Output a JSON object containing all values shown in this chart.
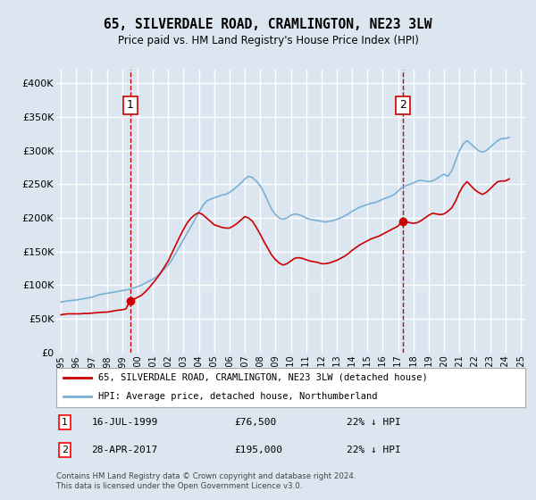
{
  "title": "65, SILVERDALE ROAD, CRAMLINGTON, NE23 3LW",
  "subtitle": "Price paid vs. HM Land Registry's House Price Index (HPI)",
  "bg_color": "#dce6f0",
  "hpi_color": "#7ab0d4",
  "price_color": "#cc0000",
  "vline_color": "#cc0000",
  "ylim": [
    0,
    420000
  ],
  "yticks": [
    0,
    50000,
    100000,
    150000,
    200000,
    250000,
    300000,
    350000,
    400000
  ],
  "ytick_labels": [
    "£0",
    "£50K",
    "£100K",
    "£150K",
    "£200K",
    "£250K",
    "£300K",
    "£350K",
    "£400K"
  ],
  "legend_label_price": "65, SILVERDALE ROAD, CRAMLINGTON, NE23 3LW (detached house)",
  "legend_label_hpi": "HPI: Average price, detached house, Northumberland",
  "note1_date": "16-JUL-1999",
  "note1_price": "£76,500",
  "note1_hpi": "22% ↓ HPI",
  "note2_date": "28-APR-2017",
  "note2_price": "£195,000",
  "note2_hpi": "22% ↓ HPI",
  "footer": "Contains HM Land Registry data © Crown copyright and database right 2024.\nThis data is licensed under the Open Government Licence v3.0.",
  "sale1_year": 1999.54,
  "sale1_price": 76500,
  "sale2_year": 2017.32,
  "sale2_price": 195000,
  "hpi_years": [
    1995.0,
    1995.25,
    1995.5,
    1995.75,
    1996.0,
    1996.25,
    1996.5,
    1996.75,
    1997.0,
    1997.25,
    1997.5,
    1997.75,
    1998.0,
    1998.25,
    1998.5,
    1998.75,
    1999.0,
    1999.25,
    1999.5,
    1999.75,
    2000.0,
    2000.25,
    2000.5,
    2000.75,
    2001.0,
    2001.25,
    2001.5,
    2001.75,
    2002.0,
    2002.25,
    2002.5,
    2002.75,
    2003.0,
    2003.25,
    2003.5,
    2003.75,
    2004.0,
    2004.25,
    2004.5,
    2004.75,
    2005.0,
    2005.25,
    2005.5,
    2005.75,
    2006.0,
    2006.25,
    2006.5,
    2006.75,
    2007.0,
    2007.25,
    2007.5,
    2007.75,
    2008.0,
    2008.25,
    2008.5,
    2008.75,
    2009.0,
    2009.25,
    2009.5,
    2009.75,
    2010.0,
    2010.25,
    2010.5,
    2010.75,
    2011.0,
    2011.25,
    2011.5,
    2011.75,
    2012.0,
    2012.25,
    2012.5,
    2012.75,
    2013.0,
    2013.25,
    2013.5,
    2013.75,
    2014.0,
    2014.25,
    2014.5,
    2014.75,
    2015.0,
    2015.25,
    2015.5,
    2015.75,
    2016.0,
    2016.25,
    2016.5,
    2016.75,
    2017.0,
    2017.25,
    2017.5,
    2017.75,
    2018.0,
    2018.25,
    2018.5,
    2018.75,
    2019.0,
    2019.25,
    2019.5,
    2019.75,
    2020.0,
    2020.25,
    2020.5,
    2020.75,
    2021.0,
    2021.25,
    2021.5,
    2021.75,
    2022.0,
    2022.25,
    2022.5,
    2022.75,
    2023.0,
    2023.25,
    2023.5,
    2023.75,
    2024.0,
    2024.25
  ],
  "hpi_values": [
    75000,
    76000,
    77000,
    77500,
    78000,
    79000,
    80000,
    81000,
    82000,
    84000,
    86000,
    87000,
    88000,
    89000,
    90000,
    91000,
    92000,
    93000,
    94000,
    96000,
    98000,
    100000,
    103000,
    106000,
    109000,
    113000,
    118000,
    124000,
    130000,
    138000,
    148000,
    158000,
    168000,
    178000,
    188000,
    198000,
    208000,
    218000,
    225000,
    228000,
    230000,
    232000,
    234000,
    235000,
    238000,
    242000,
    247000,
    252000,
    258000,
    262000,
    260000,
    255000,
    248000,
    238000,
    225000,
    213000,
    205000,
    200000,
    198000,
    200000,
    204000,
    206000,
    205000,
    203000,
    200000,
    198000,
    197000,
    196000,
    195000,
    194000,
    195000,
    196000,
    198000,
    200000,
    203000,
    206000,
    210000,
    213000,
    216000,
    218000,
    220000,
    222000,
    223000,
    225000,
    228000,
    230000,
    232000,
    235000,
    240000,
    245000,
    248000,
    250000,
    252000,
    255000,
    256000,
    255000,
    254000,
    255000,
    258000,
    262000,
    265000,
    262000,
    270000,
    285000,
    300000,
    310000,
    315000,
    310000,
    305000,
    300000,
    298000,
    300000,
    305000,
    310000,
    315000,
    318000,
    318000,
    320000
  ],
  "price_years": [
    1995.0,
    1995.25,
    1995.5,
    1995.75,
    1996.0,
    1996.25,
    1996.5,
    1996.75,
    1997.0,
    1997.25,
    1997.5,
    1997.75,
    1998.0,
    1998.25,
    1998.5,
    1998.75,
    1999.0,
    1999.25,
    1999.5,
    1999.75,
    2000.0,
    2000.25,
    2000.5,
    2000.75,
    2001.0,
    2001.25,
    2001.5,
    2001.75,
    2002.0,
    2002.25,
    2002.5,
    2002.75,
    2003.0,
    2003.25,
    2003.5,
    2003.75,
    2004.0,
    2004.25,
    2004.5,
    2004.75,
    2005.0,
    2005.25,
    2005.5,
    2005.75,
    2006.0,
    2006.25,
    2006.5,
    2006.75,
    2007.0,
    2007.25,
    2007.5,
    2007.75,
    2008.0,
    2008.25,
    2008.5,
    2008.75,
    2009.0,
    2009.25,
    2009.5,
    2009.75,
    2010.0,
    2010.25,
    2010.5,
    2010.75,
    2011.0,
    2011.25,
    2011.5,
    2011.75,
    2012.0,
    2012.25,
    2012.5,
    2012.75,
    2013.0,
    2013.25,
    2013.5,
    2013.75,
    2014.0,
    2014.25,
    2014.5,
    2014.75,
    2015.0,
    2015.25,
    2015.5,
    2015.75,
    2016.0,
    2016.25,
    2016.5,
    2016.75,
    2017.0,
    2017.25,
    2017.5,
    2017.75,
    2018.0,
    2018.25,
    2018.5,
    2018.75,
    2019.0,
    2019.25,
    2019.5,
    2019.75,
    2020.0,
    2020.25,
    2020.5,
    2020.75,
    2021.0,
    2021.25,
    2021.5,
    2021.75,
    2022.0,
    2022.25,
    2022.5,
    2022.75,
    2023.0,
    2023.25,
    2023.5,
    2023.75,
    2024.0,
    2024.25
  ],
  "price_values": [
    56000,
    57000,
    57500,
    57500,
    57500,
    57500,
    58000,
    58000,
    58500,
    59000,
    59500,
    60000,
    60000,
    61000,
    62000,
    63000,
    63500,
    65000,
    76500,
    79000,
    82000,
    85000,
    90000,
    96000,
    103000,
    110000,
    118000,
    127000,
    136000,
    148000,
    160000,
    172000,
    183000,
    193000,
    200000,
    205000,
    208000,
    205000,
    200000,
    195000,
    190000,
    188000,
    186000,
    185000,
    185000,
    188000,
    192000,
    197000,
    202000,
    200000,
    195000,
    186000,
    176000,
    165000,
    155000,
    145000,
    138000,
    133000,
    130000,
    132000,
    136000,
    140000,
    141000,
    140000,
    138000,
    136000,
    135000,
    134000,
    132000,
    132000,
    133000,
    135000,
    137000,
    140000,
    143000,
    147000,
    152000,
    156000,
    160000,
    163000,
    166000,
    169000,
    171000,
    173000,
    176000,
    179000,
    182000,
    185000,
    188000,
    195000,
    195000,
    193000,
    192000,
    193000,
    196000,
    200000,
    204000,
    207000,
    206000,
    205000,
    206000,
    210000,
    215000,
    225000,
    238000,
    248000,
    254000,
    248000,
    242000,
    238000,
    235000,
    238000,
    243000,
    249000,
    254000,
    255000,
    255000,
    258000
  ],
  "xtick_years": [
    1995,
    1996,
    1997,
    1998,
    1999,
    2000,
    2001,
    2002,
    2003,
    2004,
    2005,
    2006,
    2007,
    2008,
    2009,
    2010,
    2011,
    2012,
    2013,
    2014,
    2015,
    2016,
    2017,
    2018,
    2019,
    2020,
    2021,
    2022,
    2023,
    2024,
    2025
  ]
}
